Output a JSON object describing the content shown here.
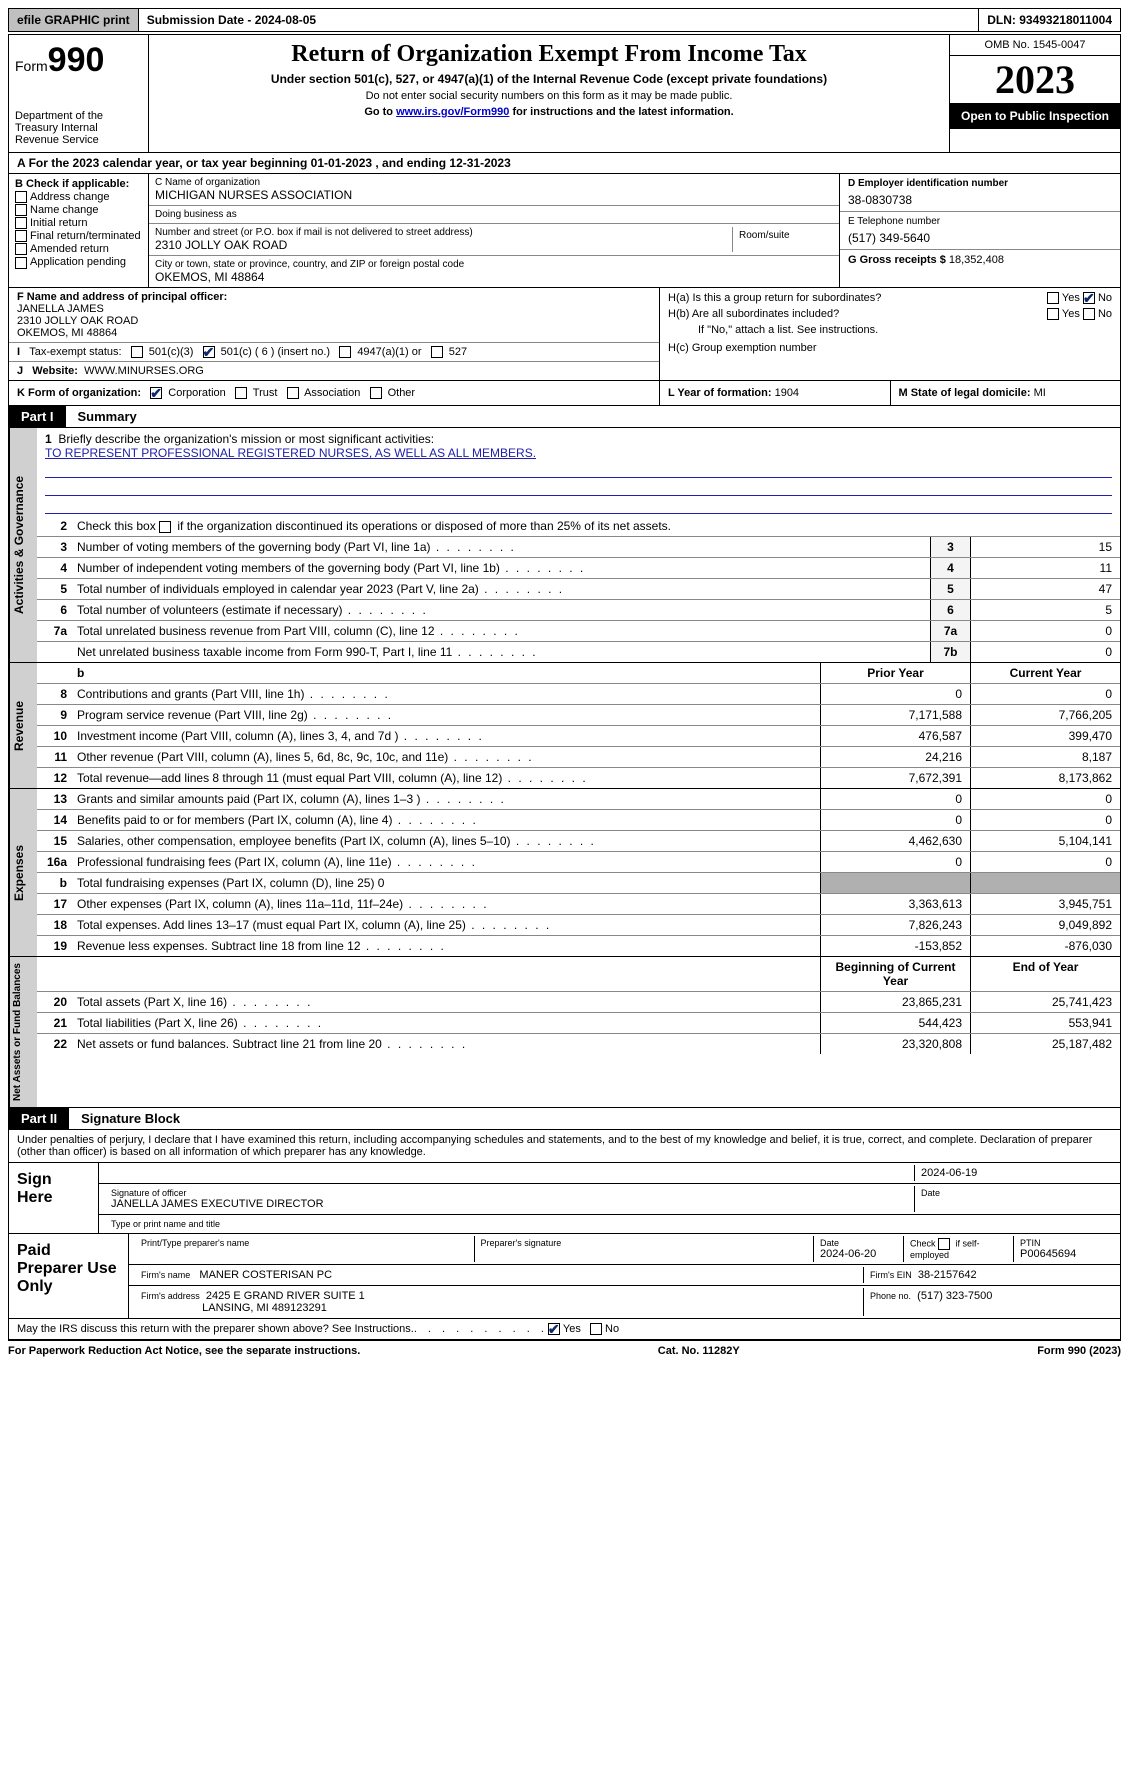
{
  "topbar": {
    "efile": "efile GRAPHIC print",
    "submission": "Submission Date - 2024-08-05",
    "dln": "DLN: 93493218011004"
  },
  "header": {
    "form": "Form",
    "num": "990",
    "dept": "Department of the Treasury Internal Revenue Service",
    "title": "Return of Organization Exempt From Income Tax",
    "sub1": "Under section 501(c), 527, or 4947(a)(1) of the Internal Revenue Code (except private foundations)",
    "sub2": "Do not enter social security numbers on this form as it may be made public.",
    "sub3_pre": "Go to ",
    "sub3_link": "www.irs.gov/Form990",
    "sub3_post": " for instructions and the latest information.",
    "omb": "OMB No. 1545-0047",
    "year": "2023",
    "open": "Open to Public Inspection"
  },
  "A": {
    "text": "For the 2023 calendar year, or tax year beginning 01-01-2023   , and ending 12-31-2023"
  },
  "B": {
    "label": "B Check if applicable:",
    "items": [
      "Address change",
      "Name change",
      "Initial return",
      "Final return/terminated",
      "Amended return",
      "Application pending"
    ]
  },
  "C": {
    "name_lbl": "C Name of organization",
    "name": "MICHIGAN NURSES ASSOCIATION",
    "dba_lbl": "Doing business as",
    "dba": "",
    "street_lbl": "Number and street (or P.O. box if mail is not delivered to street address)",
    "room_lbl": "Room/suite",
    "street": "2310 JOLLY OAK ROAD",
    "city_lbl": "City or town, state or province, country, and ZIP or foreign postal code",
    "city": "OKEMOS, MI  48864"
  },
  "D": {
    "lbl": "D Employer identification number",
    "val": "38-0830738"
  },
  "E": {
    "lbl": "E Telephone number",
    "val": "(517) 349-5640"
  },
  "G": {
    "lbl": "G Gross receipts $",
    "val": "18,352,408"
  },
  "F": {
    "lbl": "F  Name and address of principal officer:",
    "name": "JANELLA JAMES",
    "street": "2310 JOLLY OAK ROAD",
    "city": "OKEMOS, MI  48864"
  },
  "H": {
    "a": "H(a)  Is this a group return for subordinates?",
    "b": "H(b)  Are all subordinates included?",
    "note": "If \"No,\" attach a list. See instructions.",
    "c": "H(c)  Group exemption number"
  },
  "I": {
    "lbl": "Tax-exempt status:",
    "opts": [
      "501(c)(3)",
      "501(c) ( 6 ) (insert no.)",
      "4947(a)(1) or",
      "527"
    ]
  },
  "J": {
    "lbl": "Website:",
    "val": "WWW.MINURSES.ORG"
  },
  "K": {
    "lbl": "K Form of organization:",
    "opts": [
      "Corporation",
      "Trust",
      "Association",
      "Other"
    ]
  },
  "L": {
    "lbl": "L Year of formation:",
    "val": "1904"
  },
  "M": {
    "lbl": "M State of legal domicile:",
    "val": "MI"
  },
  "part1": {
    "tag": "Part I",
    "title": "Summary"
  },
  "summary": {
    "q1": "Briefly describe the organization's mission or most significant activities:",
    "mission": "TO REPRESENT PROFESSIONAL REGISTERED NURSES, AS WELL AS ALL MEMBERS.",
    "q2": "Check this box      if the organization discontinued its operations or disposed of more than 25% of its net assets.",
    "lines_gov": [
      {
        "n": "3",
        "t": "Number of voting members of the governing body (Part VI, line 1a)",
        "b": "3",
        "v": "15"
      },
      {
        "n": "4",
        "t": "Number of independent voting members of the governing body (Part VI, line 1b)",
        "b": "4",
        "v": "11"
      },
      {
        "n": "5",
        "t": "Total number of individuals employed in calendar year 2023 (Part V, line 2a)",
        "b": "5",
        "v": "47"
      },
      {
        "n": "6",
        "t": "Total number of volunteers (estimate if necessary)",
        "b": "6",
        "v": "5"
      },
      {
        "n": "7a",
        "t": "Total unrelated business revenue from Part VIII, column (C), line 12",
        "b": "7a",
        "v": "0"
      },
      {
        "n": "",
        "t": "Net unrelated business taxable income from Form 990-T, Part I, line 11",
        "b": "7b",
        "v": "0"
      }
    ],
    "hdr_prior": "Prior Year",
    "hdr_curr": "Current Year",
    "revenue": [
      {
        "n": "8",
        "t": "Contributions and grants (Part VIII, line 1h)",
        "p": "0",
        "c": "0"
      },
      {
        "n": "9",
        "t": "Program service revenue (Part VIII, line 2g)",
        "p": "7,171,588",
        "c": "7,766,205"
      },
      {
        "n": "10",
        "t": "Investment income (Part VIII, column (A), lines 3, 4, and 7d )",
        "p": "476,587",
        "c": "399,470"
      },
      {
        "n": "11",
        "t": "Other revenue (Part VIII, column (A), lines 5, 6d, 8c, 9c, 10c, and 11e)",
        "p": "24,216",
        "c": "8,187"
      },
      {
        "n": "12",
        "t": "Total revenue—add lines 8 through 11 (must equal Part VIII, column (A), line 12)",
        "p": "7,672,391",
        "c": "8,173,862"
      }
    ],
    "expenses": [
      {
        "n": "13",
        "t": "Grants and similar amounts paid (Part IX, column (A), lines 1–3 )",
        "p": "0",
        "c": "0"
      },
      {
        "n": "14",
        "t": "Benefits paid to or for members (Part IX, column (A), line 4)",
        "p": "0",
        "c": "0"
      },
      {
        "n": "15",
        "t": "Salaries, other compensation, employee benefits (Part IX, column (A), lines 5–10)",
        "p": "4,462,630",
        "c": "5,104,141"
      },
      {
        "n": "16a",
        "t": "Professional fundraising fees (Part IX, column (A), line 11e)",
        "p": "0",
        "c": "0"
      },
      {
        "n": "b",
        "t": "Total fundraising expenses (Part IX, column (D), line 25) 0",
        "p": "",
        "c": "",
        "shade": true
      },
      {
        "n": "17",
        "t": "Other expenses (Part IX, column (A), lines 11a–11d, 11f–24e)",
        "p": "3,363,613",
        "c": "3,945,751"
      },
      {
        "n": "18",
        "t": "Total expenses. Add lines 13–17 (must equal Part IX, column (A), line 25)",
        "p": "7,826,243",
        "c": "9,049,892"
      },
      {
        "n": "19",
        "t": "Revenue less expenses. Subtract line 18 from line 12",
        "p": "-153,852",
        "c": "-876,030"
      }
    ],
    "hdr_beg": "Beginning of Current Year",
    "hdr_end": "End of Year",
    "netassets": [
      {
        "n": "20",
        "t": "Total assets (Part X, line 16)",
        "p": "23,865,231",
        "c": "25,741,423"
      },
      {
        "n": "21",
        "t": "Total liabilities (Part X, line 26)",
        "p": "544,423",
        "c": "553,941"
      },
      {
        "n": "22",
        "t": "Net assets or fund balances. Subtract line 21 from line 20",
        "p": "23,320,808",
        "c": "25,187,482"
      }
    ]
  },
  "part2": {
    "tag": "Part II",
    "title": "Signature Block"
  },
  "sig": {
    "stmt": "Under penalties of perjury, I declare that I have examined this return, including accompanying schedules and statements, and to the best of my knowledge and belief, it is true, correct, and complete. Declaration of preparer (other than officer) is based on all information of which preparer has any knowledge.",
    "sign_here": "Sign Here",
    "sig_date": "2024-06-19",
    "sig_lbl": "Signature of officer",
    "date_lbl": "Date",
    "officer": "JANELLA JAMES  EXECUTIVE DIRECTOR",
    "type_lbl": "Type or print name and title",
    "paid": "Paid Preparer Use Only",
    "prep_name_lbl": "Print/Type preparer's name",
    "prep_sig_lbl": "Preparer's signature",
    "prep_date_lbl": "Date",
    "prep_date": "2024-06-20",
    "self_lbl": "Check      if self-employed",
    "ptin_lbl": "PTIN",
    "ptin": "P00645694",
    "firm_name_lbl": "Firm's name",
    "firm_name": "MANER COSTERISAN PC",
    "firm_ein_lbl": "Firm's EIN",
    "firm_ein": "38-2157642",
    "firm_addr_lbl": "Firm's address",
    "firm_addr": "2425 E GRAND RIVER SUITE 1",
    "firm_city": "LANSING, MI  489123291",
    "phone_lbl": "Phone no.",
    "phone": "(517) 323-7500",
    "discuss": "May the IRS discuss this return with the preparer shown above? See Instructions."
  },
  "footer": {
    "left": "For Paperwork Reduction Act Notice, see the separate instructions.",
    "mid": "Cat. No. 11282Y",
    "right": "Form 990 (2023)"
  },
  "labels": {
    "yes": "Yes",
    "no": "No",
    "vlab_gov": "Activities & Governance",
    "vlab_rev": "Revenue",
    "vlab_exp": "Expenses",
    "vlab_net": "Net Assets or Fund Balances"
  }
}
